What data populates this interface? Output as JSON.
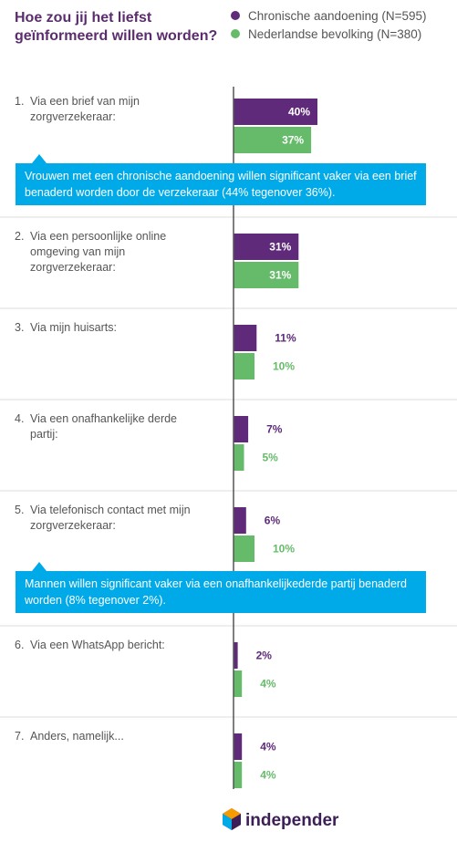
{
  "chart_data": {
    "type": "bar",
    "orientation": "horizontal",
    "title": [
      "Hoe zou jij het liefst",
      "geïnformeerd willen worden?"
    ],
    "categories": [
      "Via een brief van mijn zorgverzekeraar:",
      "Via een persoonlijke online omgeving van mijn zorgverzekeraar:",
      "Via mijn huisarts:",
      "Via een onafhankelijke derde partij:",
      "Via telefonisch contact met mijn zorgverzekeraar:",
      "Via een WhatsApp bericht:",
      "Anders, namelijk..."
    ],
    "category_labels": [
      [
        "1.",
        "Via een brief van mijn",
        "zorgverzekeraar:"
      ],
      [
        "2.",
        "Via een persoonlijke online",
        "omgeving van mijn",
        "zorgverzekeraar:"
      ],
      [
        "3.",
        "Via mijn huisarts:"
      ],
      [
        "4.",
        "Via een onafhankelijke derde",
        "partij:"
      ],
      [
        "5.",
        "Via telefonisch contact met mijn",
        "zorgverzekeraar:"
      ],
      [
        "6.",
        "Via een WhatsApp bericht:"
      ],
      [
        "7.",
        "Anders, namelijk..."
      ]
    ],
    "series": [
      {
        "name": "Chronische aandoening (N=595)",
        "color": "#5e2a79",
        "values": [
          40,
          31,
          11,
          7,
          6,
          2,
          4
        ]
      },
      {
        "name": "Nederlandse bevolking (N=380)",
        "color": "#66bb6a",
        "values": [
          37,
          31,
          10,
          5,
          10,
          4,
          4
        ]
      }
    ],
    "value_suffix": "%",
    "xlim": [
      0,
      100
    ],
    "legend_position": "top-right",
    "grid": false
  },
  "callouts": [
    {
      "after_category": 0,
      "text": "Vrouwen met een chronische aandoening willen significant vaker via een brief benaderd worden door de verzekeraar (44% tegenover 36%)."
    },
    {
      "after_category": 4,
      "text": "Mannen willen significant vaker via een onafhankelijkederde partij benaderd worden (8% tegenover 2%)."
    }
  ],
  "colors": {
    "accent": "#00a9e8",
    "divider": "#dddddd",
    "axis": "#555555",
    "logo_dark": "#3d1f57"
  },
  "logo": {
    "text": "independer",
    "icon": "hexagon-logo-icon"
  }
}
